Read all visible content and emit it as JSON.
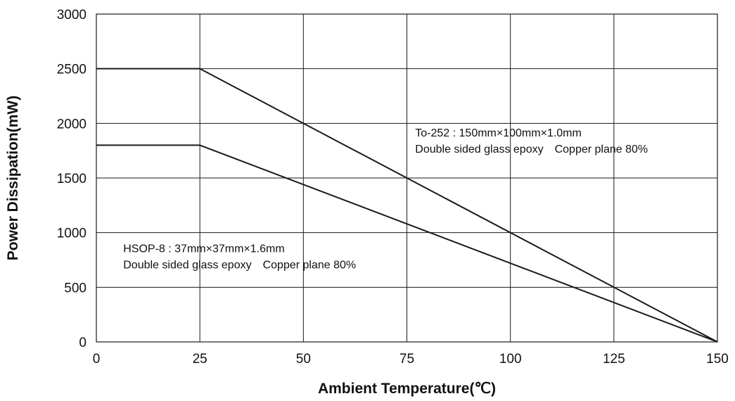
{
  "chart_data": {
    "type": "line",
    "xlabel": "Ambient Temperature(℃)",
    "ylabel": "Power Dissipation(mW)",
    "xlim": [
      0,
      150
    ],
    "ylim": [
      0,
      3000
    ],
    "x_ticks": [
      0,
      25,
      50,
      75,
      100,
      125,
      150
    ],
    "y_ticks": [
      0,
      500,
      1000,
      1500,
      2000,
      2500,
      3000
    ],
    "grid": true,
    "series": [
      {
        "x": [
          0,
          25,
          150
        ],
        "y": [
          2500,
          2500,
          0
        ],
        "color": "#1a1a1a"
      },
      {
        "x": [
          0,
          25,
          150
        ],
        "y": [
          1800,
          1800,
          0
        ],
        "color": "#1a1a1a"
      }
    ],
    "annotations": [
      {
        "x": 77,
        "y": 1880,
        "lines": [
          "To-252 : 150mm×100mm×1.0mm",
          "Double sided glass epoxy　Copper plane 80%"
        ]
      },
      {
        "x": 6.5,
        "y": 820,
        "lines": [
          "HSOP-8 : 37mm×37mm×1.6mm",
          "Double sided glass epoxy　Copper plane 80%"
        ]
      }
    ]
  }
}
